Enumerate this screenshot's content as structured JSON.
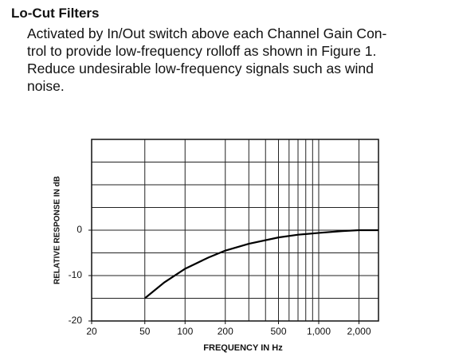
{
  "header": {
    "title": "Lo-Cut Filters",
    "body_lines": [
      "Activated by In/Out switch above each Channel Gain Con-",
      "trol to provide low-frequency rolloff as shown in Figure 1.",
      "Reduce undesirable low-frequency signals such as wind",
      "noise."
    ]
  },
  "chart_data": {
    "type": "line",
    "xlabel": "FREQUENCY IN Hz",
    "ylabel": "RELATIVE RESPONSE IN dB",
    "x": [
      50,
      70,
      100,
      150,
      200,
      300,
      500,
      700,
      1000,
      1500,
      2000,
      2800
    ],
    "values": [
      -15,
      -11.5,
      -8.5,
      -6,
      -4.5,
      -3,
      -1.6,
      -1,
      -0.6,
      -0.2,
      0,
      0
    ],
    "color": "#000000",
    "xscale": "log",
    "xlim": [
      20,
      2800
    ],
    "ylim": [
      -20,
      20
    ],
    "xticks": [
      20,
      50,
      100,
      200,
      500,
      {
        "value": 1000,
        "label": "1,000"
      },
      {
        "value": 2000,
        "label": "2,000"
      }
    ],
    "yticks": [
      -20,
      -10,
      0
    ],
    "xgrid": [
      50,
      100,
      200,
      300,
      400,
      500,
      600,
      700,
      800,
      900,
      1000,
      2000
    ],
    "ygrid": [
      -15,
      -10,
      -5,
      0,
      5,
      10,
      15
    ],
    "grid": true
  }
}
